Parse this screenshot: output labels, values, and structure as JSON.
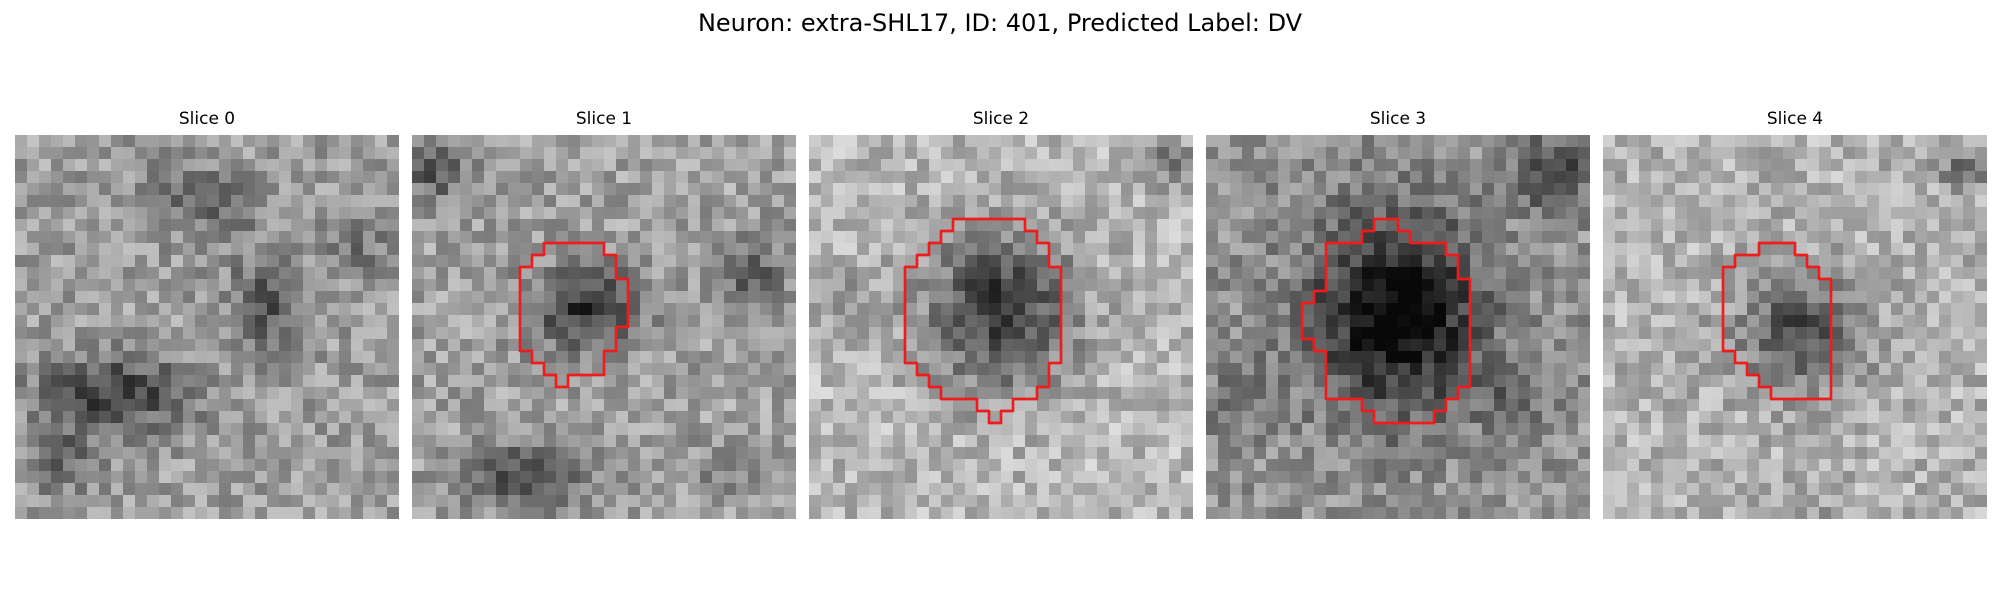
{
  "figure": {
    "title": "Neuron: extra-SHL17, ID: 401, Predicted Label: DV"
  },
  "panels": [
    {
      "title": "Slice 0",
      "has_contour": false
    },
    {
      "title": "Slice 1",
      "has_contour": true
    },
    {
      "title": "Slice 2",
      "has_contour": true
    },
    {
      "title": "Slice 3",
      "has_contour": true
    },
    {
      "title": "Slice 4",
      "has_contour": true
    }
  ],
  "colors": {
    "contour": "#ee1c1c"
  }
}
